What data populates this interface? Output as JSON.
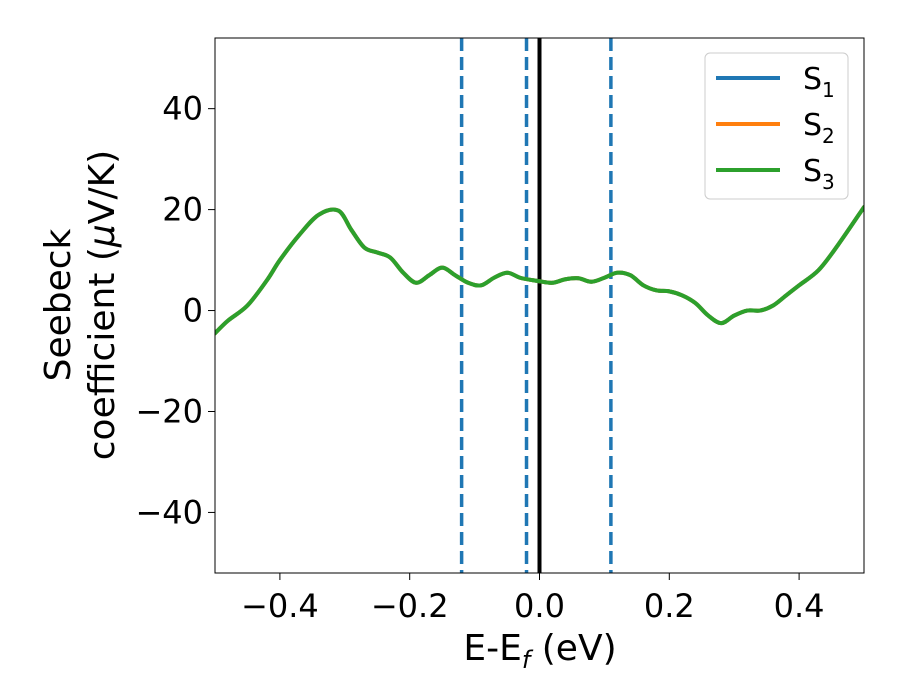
{
  "chart_data": {
    "type": "line",
    "xlabel_main": "E-E",
    "xlabel_sub": "f",
    "xlabel_tail": " (eV)",
    "ylabel_line1": "Seebeck",
    "ylabel_line2_a": "coefficient  (",
    "ylabel_line2_mu": "μ",
    "ylabel_line2_b": "V/K)",
    "xlim": [
      -0.5,
      0.5
    ],
    "ylim": [
      -52,
      54
    ],
    "xticks": [
      -0.4,
      -0.2,
      0.0,
      0.2,
      0.4
    ],
    "xtick_labels": [
      "−0.4",
      "−0.2",
      "0.0",
      "0.2",
      "0.4"
    ],
    "yticks": [
      -40,
      -20,
      0,
      20,
      40
    ],
    "ytick_labels": [
      "−40",
      "−20",
      "0",
      "20",
      "40"
    ],
    "grid": false,
    "legend_position": "top-right",
    "series": [
      {
        "name": "S",
        "name_sub": "1",
        "color": "#1f77b4",
        "x": [
          -0.5,
          -0.48,
          -0.45,
          -0.42,
          -0.4,
          -0.37,
          -0.34,
          -0.31,
          -0.29,
          -0.27,
          -0.25,
          -0.23,
          -0.21,
          -0.19,
          -0.17,
          -0.15,
          -0.13,
          -0.11,
          -0.09,
          -0.07,
          -0.05,
          -0.03,
          -0.01,
          0.0,
          0.02,
          0.04,
          0.06,
          0.08,
          0.1,
          0.12,
          0.14,
          0.16,
          0.18,
          0.2,
          0.22,
          0.24,
          0.26,
          0.28,
          0.3,
          0.32,
          0.34,
          0.36,
          0.38,
          0.4,
          0.43,
          0.46,
          0.5
        ],
        "y": [
          -4.5,
          -2,
          1,
          6,
          10,
          15,
          19,
          19.8,
          16,
          12.5,
          11.5,
          10.5,
          7.5,
          5.5,
          7,
          8.5,
          7,
          5.5,
          5,
          6.5,
          7.5,
          6.5,
          6,
          5.8,
          5.5,
          6.2,
          6.4,
          5.7,
          6.5,
          7.5,
          7,
          5,
          4,
          3.8,
          3,
          1.5,
          -1,
          -2.5,
          -1,
          0,
          0,
          1,
          3,
          5,
          8,
          13,
          20.5
        ]
      },
      {
        "name": "S",
        "name_sub": "2",
        "color": "#ff7f0e",
        "x": [
          -0.5,
          -0.48,
          -0.45,
          -0.42,
          -0.4,
          -0.37,
          -0.34,
          -0.31,
          -0.29,
          -0.27,
          -0.25,
          -0.23,
          -0.21,
          -0.19,
          -0.17,
          -0.15,
          -0.13,
          -0.11,
          -0.09,
          -0.07,
          -0.05,
          -0.03,
          -0.01,
          0.0,
          0.02,
          0.04,
          0.06,
          0.08,
          0.1,
          0.12,
          0.14,
          0.16,
          0.18,
          0.2,
          0.22,
          0.24,
          0.26,
          0.28,
          0.3,
          0.32,
          0.34,
          0.36,
          0.38,
          0.4,
          0.43,
          0.46,
          0.5
        ],
        "y": [
          -4.5,
          -2,
          1,
          6,
          10,
          15,
          19,
          19.8,
          16,
          12.5,
          11.5,
          10.5,
          7.5,
          5.5,
          7,
          8.5,
          7,
          5.5,
          5,
          6.5,
          7.5,
          6.5,
          6,
          5.8,
          5.5,
          6.2,
          6.4,
          5.7,
          6.5,
          7.5,
          7,
          5,
          4,
          3.8,
          3,
          1.5,
          -1,
          -2.5,
          -1,
          0,
          0,
          1,
          3,
          5,
          8,
          13,
          20.5
        ]
      },
      {
        "name": "S",
        "name_sub": "3",
        "color": "#2ca02c",
        "x": [
          -0.5,
          -0.48,
          -0.45,
          -0.42,
          -0.4,
          -0.37,
          -0.34,
          -0.31,
          -0.29,
          -0.27,
          -0.25,
          -0.23,
          -0.21,
          -0.19,
          -0.17,
          -0.15,
          -0.13,
          -0.11,
          -0.09,
          -0.07,
          -0.05,
          -0.03,
          -0.01,
          0.0,
          0.02,
          0.04,
          0.06,
          0.08,
          0.1,
          0.12,
          0.14,
          0.16,
          0.18,
          0.2,
          0.22,
          0.24,
          0.26,
          0.28,
          0.3,
          0.32,
          0.34,
          0.36,
          0.38,
          0.4,
          0.43,
          0.46,
          0.5
        ],
        "y": [
          -4.5,
          -2,
          1,
          6,
          10,
          15,
          19,
          19.8,
          16,
          12.5,
          11.5,
          10.5,
          7.5,
          5.5,
          7,
          8.5,
          7,
          5.5,
          5,
          6.5,
          7.5,
          6.5,
          6,
          5.8,
          5.5,
          6.2,
          6.4,
          5.7,
          6.5,
          7.5,
          7,
          5,
          4,
          3.8,
          3,
          1.5,
          -1,
          -2.5,
          -1,
          0,
          0,
          1,
          3,
          5,
          8,
          13,
          20.5
        ]
      }
    ],
    "vlines": [
      {
        "x": -0.12,
        "style": "dashed",
        "color": "#1f77b4"
      },
      {
        "x": -0.02,
        "style": "dashed",
        "color": "#1f77b4"
      },
      {
        "x": 0.11,
        "style": "dashed",
        "color": "#1f77b4"
      },
      {
        "x": 0.0,
        "style": "solid",
        "color": "#000000"
      }
    ]
  }
}
